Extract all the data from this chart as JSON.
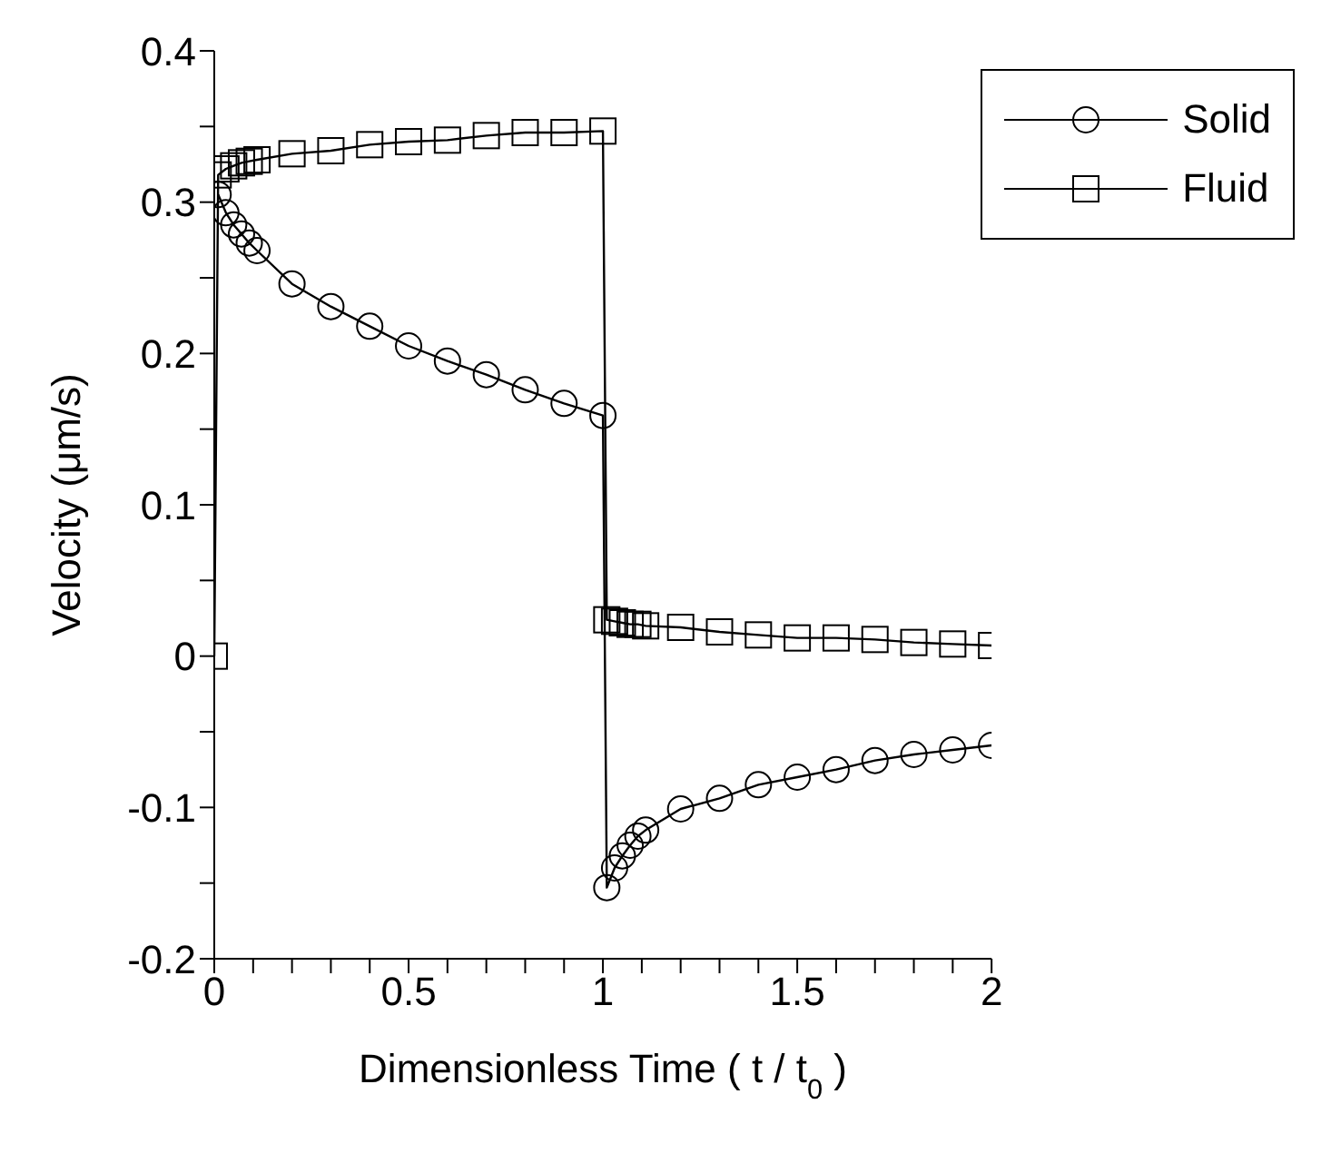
{
  "chart_data": {
    "type": "line",
    "xlabel": "Dimensionless Time ( t / t$_{0}$ )",
    "ylabel": "Velocity (μm/s)",
    "xlim": [
      0,
      2
    ],
    "xticks": [
      0,
      {
        "value": 0.1,
        "label": null
      },
      {
        "value": 0.2,
        "label": null
      },
      {
        "value": 0.3,
        "label": null
      },
      {
        "value": 0.4,
        "label": null
      },
      0.5,
      {
        "value": 0.6,
        "label": null
      },
      {
        "value": 0.7,
        "label": null
      },
      {
        "value": 0.8,
        "label": null
      },
      {
        "value": 0.9,
        "label": null
      },
      1,
      {
        "value": 1.1,
        "label": null
      },
      {
        "value": 1.2,
        "label": null
      },
      {
        "value": 1.3,
        "label": null
      },
      {
        "value": 1.4,
        "label": null
      },
      1.5,
      {
        "value": 1.6,
        "label": null
      },
      {
        "value": 1.7,
        "label": null
      },
      {
        "value": 1.8,
        "label": null
      },
      {
        "value": 1.9,
        "label": null
      },
      2
    ],
    "ylim": [
      -0.2,
      0.4
    ],
    "yticks": [
      -0.2,
      {
        "value": -0.15,
        "label": null
      },
      -0.1,
      {
        "value": -0.05,
        "label": null
      },
      0,
      {
        "value": 0.05,
        "label": null
      },
      0.1,
      {
        "value": 0.15,
        "label": null
      },
      0.2,
      {
        "value": 0.25,
        "label": null
      },
      0.3,
      {
        "value": 0.35,
        "label": null
      },
      0.4
    ],
    "legend": "top right",
    "line_style": "solid",
    "series": [
      {
        "name": "Solid",
        "color": "#000000",
        "marker": "circle",
        "x": [
          0.01,
          0.03,
          0.05,
          0.07,
          0.09,
          0.11,
          0.2,
          0.3,
          0.4,
          0.5,
          0.6,
          0.7,
          0.8,
          0.9,
          1.0,
          1.01,
          1.03,
          1.05,
          1.07,
          1.09,
          1.11,
          1.2,
          1.3,
          1.4,
          1.5,
          1.6,
          1.7,
          1.8,
          1.9,
          2.0
        ],
        "values": [
          0.305,
          0.293,
          0.285,
          0.279,
          0.273,
          0.268,
          0.246,
          0.231,
          0.218,
          0.205,
          0.195,
          0.186,
          0.176,
          0.167,
          0.159,
          -0.153,
          -0.14,
          -0.132,
          -0.125,
          -0.119,
          -0.115,
          -0.101,
          -0.094,
          -0.085,
          -0.08,
          -0.075,
          -0.069,
          -0.065,
          -0.062,
          -0.059
        ]
      },
      {
        "name": "Fluid",
        "color": "#000000",
        "marker": "square",
        "x": [
          0,
          0.01,
          0.03,
          0.05,
          0.07,
          0.09,
          0.11,
          0.2,
          0.3,
          0.4,
          0.5,
          0.6,
          0.7,
          0.8,
          0.9,
          1.0,
          1.01,
          1.03,
          1.05,
          1.07,
          1.09,
          1.11,
          1.2,
          1.3,
          1.4,
          1.5,
          1.6,
          1.7,
          1.8,
          1.9,
          2.0
        ],
        "values": [
          0,
          0.318,
          0.322,
          0.324,
          0.326,
          0.327,
          0.328,
          0.332,
          0.334,
          0.338,
          0.34,
          0.341,
          0.344,
          0.346,
          0.346,
          0.347,
          0.024,
          0.023,
          0.022,
          0.021,
          0.021,
          0.02,
          0.019,
          0.016,
          0.014,
          0.012,
          0.012,
          0.011,
          0.009,
          0.008,
          0.007
        ]
      }
    ]
  }
}
